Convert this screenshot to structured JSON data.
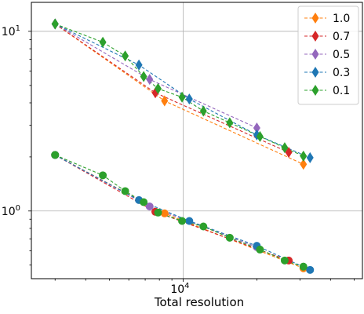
{
  "chart_data": {
    "type": "line",
    "xscale": "log",
    "yscale": "log",
    "xlabel": "Total resolution",
    "ylabel": "",
    "xlim": [
      2400,
      54000
    ],
    "ylim": [
      0.42,
      14.5
    ],
    "x_ticks": [
      {
        "value": 10000,
        "base": "10",
        "exp": "4"
      }
    ],
    "y_ticks": [
      {
        "value": 1,
        "base": "10",
        "exp": "0"
      },
      {
        "value": 10,
        "base": "10",
        "exp": "1"
      }
    ],
    "grid": true,
    "legend_position": "top-right",
    "series": [
      {
        "name": "1.0",
        "color": "#ff7f0e",
        "upper": {
          "x": [
            3000,
            8400,
            31000
          ],
          "y": [
            11.0,
            4.1,
            1.82
          ]
        },
        "lower": {
          "x": [
            3000,
            8400,
            31000
          ],
          "y": [
            2.05,
            0.97,
            0.48
          ]
        }
      },
      {
        "name": "0.7",
        "color": "#d62728",
        "upper": {
          "x": [
            3000,
            7700,
            27000
          ],
          "y": [
            11.0,
            4.55,
            2.12
          ]
        },
        "lower": {
          "x": [
            3000,
            7700,
            27000
          ],
          "y": [
            2.05,
            0.99,
            0.53
          ]
        }
      },
      {
        "name": "0.5",
        "color": "#9467bd",
        "upper": {
          "x": [
            3000,
            7300,
            20000
          ],
          "y": [
            11.0,
            5.4,
            2.9
          ]
        },
        "lower": {
          "x": [
            3000,
            7300,
            20000
          ],
          "y": [
            2.05,
            1.06,
            0.63
          ]
        }
      },
      {
        "name": "0.3",
        "color": "#1f77b4",
        "upper": {
          "x": [
            3000,
            6600,
            10600,
            20000,
            33000
          ],
          "y": [
            11.0,
            6.5,
            4.2,
            2.65,
            1.98
          ]
        },
        "lower": {
          "x": [
            3000,
            6600,
            10600,
            20000,
            33000
          ],
          "y": [
            2.05,
            1.15,
            0.88,
            0.64,
            0.47
          ]
        }
      },
      {
        "name": "0.1",
        "color": "#2ca02c",
        "upper": {
          "x": [
            3000,
            4700,
            5800,
            6900,
            7900,
            9900,
            12100,
            15500,
            20600,
            26000,
            31000
          ],
          "y": [
            11.0,
            8.7,
            7.3,
            5.6,
            4.8,
            4.3,
            3.6,
            3.1,
            2.6,
            2.25,
            2.02
          ]
        },
        "lower": {
          "x": [
            3000,
            4700,
            5800,
            6900,
            7900,
            9900,
            12100,
            15500,
            20600,
            26000,
            31000
          ],
          "y": [
            2.05,
            1.58,
            1.29,
            1.12,
            0.98,
            0.88,
            0.82,
            0.71,
            0.61,
            0.53,
            0.49
          ]
        }
      }
    ]
  }
}
